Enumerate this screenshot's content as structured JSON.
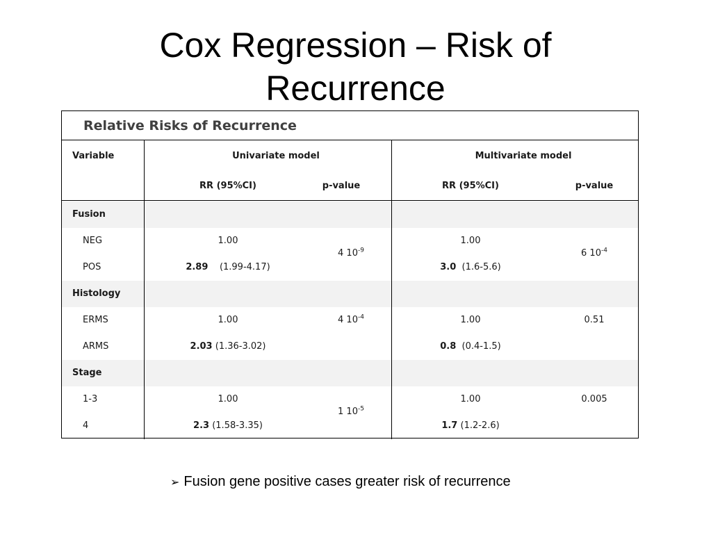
{
  "title": {
    "line1": "Cox Regression – Risk of",
    "line2": "Recurrence"
  },
  "table": {
    "caption": "Relative Risks of Recurrence",
    "headers": {
      "variable": "Variable",
      "univariate": "Univariate model",
      "multivariate": "Multivariate  model",
      "rr": "RR  (95%CI)",
      "pvalue": "p-value"
    },
    "groups": [
      {
        "name": "Fusion",
        "rows": [
          {
            "label": "NEG",
            "uni_rr": "1.00",
            "multi_rr": "1.00"
          },
          {
            "label": "POS",
            "uni_rr_bold": "2.89",
            "uni_ci": "(1.99-4.17)",
            "multi_rr_bold": "3.0",
            "multi_ci": "(1.6-5.6)"
          }
        ],
        "uni_p": {
          "base": "4 10",
          "exp": "-9"
        },
        "multi_p": {
          "base": "6 10",
          "exp": "-4"
        }
      },
      {
        "name": "Histology",
        "rows": [
          {
            "label": "ERMS",
            "uni_rr": "1.00",
            "multi_rr": "1.00"
          },
          {
            "label": "ARMS",
            "uni_rr_bold": "2.03",
            "uni_ci": "(1.36-3.02)",
            "multi_rr_bold": "0.8",
            "multi_ci": "(0.4-1.5)"
          }
        ],
        "uni_p": {
          "base": "4 10",
          "exp": "-4"
        },
        "multi_p": {
          "base": "0.51"
        }
      },
      {
        "name": "Stage",
        "rows": [
          {
            "label": "1-3",
            "uni_rr": "1.00",
            "multi_rr": "1.00"
          },
          {
            "label": "4",
            "uni_rr_bold": "2.3",
            "uni_ci": "(1.58-3.35)",
            "multi_rr_bold": "1.7",
            "multi_ci": "(1.2-2.6)"
          }
        ],
        "uni_p": {
          "base": "1 10",
          "exp": "-5"
        },
        "multi_p": {
          "base": "0.005"
        }
      }
    ]
  },
  "bullet": {
    "icon": "arrow-bullet-icon",
    "text": "Fusion gene positive cases greater risk of recurrence"
  }
}
